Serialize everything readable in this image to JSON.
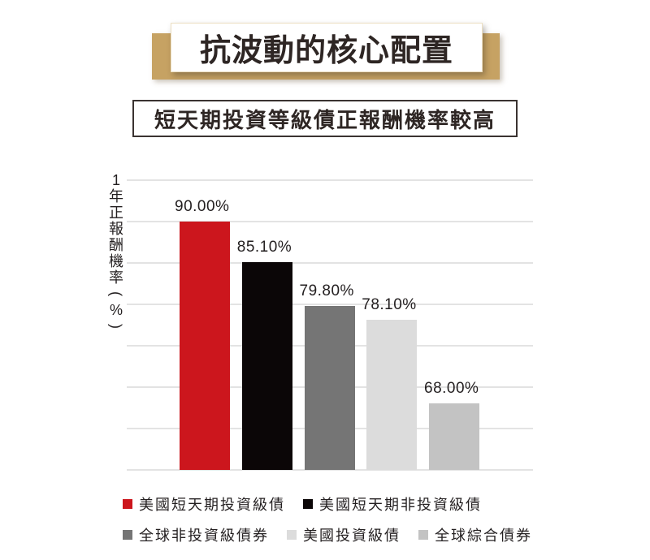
{
  "title": {
    "text": "抗波動的核心配置"
  },
  "subtitle": {
    "text": "短天期投資等級債正報酬機率較高"
  },
  "colors": {
    "banner_gold": "#c6a263",
    "text_dark": "#2e2624",
    "label_text": "#231f20",
    "gridline": "#e3e3e3",
    "subtitle_border": "#3a3331"
  },
  "chart_data": {
    "type": "bar",
    "title": "短天期投資等級債正報酬機率較高",
    "xlabel": "",
    "ylabel": "1年正報酬機率(%)",
    "ylim": [
      60,
      95
    ],
    "grid_step": 5,
    "grid": "horizontal-only",
    "axis_tick_labels": "none",
    "legend_position": "bottom",
    "categories": [
      "美國短天期投資級債",
      "美國短天期非投資級債",
      "全球非投資級債券",
      "美國投資級債",
      "全球綜合債券"
    ],
    "values": [
      90.0,
      85.1,
      79.8,
      78.1,
      68.0
    ],
    "value_labels": [
      "90.00%",
      "85.10%",
      "79.80%",
      "78.10%",
      "68.00%"
    ],
    "colors": [
      "#cc161d",
      "#0b0607",
      "#757575",
      "#dcdcdc",
      "#c3c3c3"
    ],
    "legend_rows": [
      [
        0,
        1
      ],
      [
        2,
        3,
        4
      ]
    ]
  }
}
